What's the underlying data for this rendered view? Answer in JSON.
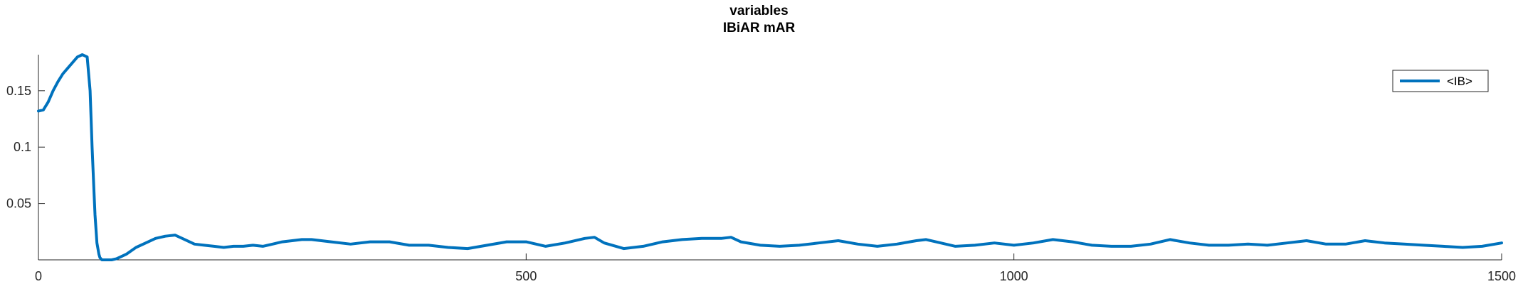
{
  "chart_data": {
    "type": "line",
    "title": "variables",
    "subtitle": "IBiAR mAR",
    "xlabel": "",
    "ylabel": "",
    "xlim": [
      0,
      1500
    ],
    "ylim": [
      0,
      0.182
    ],
    "xticks": [
      0,
      500,
      1000,
      1500
    ],
    "xtick_labels": [
      "0",
      "500",
      "1000",
      "1500"
    ],
    "yticks": [
      0.05,
      0.1,
      0.15
    ],
    "ytick_labels": [
      "0.05",
      "0.1",
      "0.15"
    ],
    "grid": false,
    "legend_position": "top-right",
    "series": [
      {
        "name": "<IB>",
        "color": "#0072BD",
        "x": [
          0,
          5,
          10,
          15,
          20,
          25,
          30,
          35,
          40,
          45,
          50,
          53,
          55,
          57,
          58,
          60,
          62,
          63,
          65,
          70,
          75,
          80,
          90,
          100,
          110,
          120,
          130,
          140,
          150,
          160,
          170,
          180,
          190,
          200,
          210,
          220,
          230,
          240,
          250,
          260,
          270,
          280,
          290,
          300,
          320,
          340,
          360,
          380,
          400,
          420,
          440,
          460,
          480,
          500,
          520,
          540,
          560,
          570,
          580,
          600,
          620,
          640,
          660,
          680,
          700,
          710,
          720,
          740,
          760,
          780,
          800,
          820,
          840,
          860,
          880,
          900,
          910,
          920,
          940,
          960,
          980,
          1000,
          1020,
          1040,
          1060,
          1080,
          1100,
          1120,
          1140,
          1160,
          1180,
          1200,
          1220,
          1240,
          1260,
          1280,
          1300,
          1320,
          1340,
          1360,
          1380,
          1400,
          1420,
          1440,
          1460,
          1480,
          1500
        ],
        "y": [
          0.132,
          0.133,
          0.14,
          0.15,
          0.158,
          0.165,
          0.17,
          0.175,
          0.18,
          0.182,
          0.18,
          0.15,
          0.1,
          0.06,
          0.04,
          0.015,
          0.005,
          0.002,
          0.0,
          0.0,
          0.0,
          0.001,
          0.005,
          0.011,
          0.015,
          0.019,
          0.021,
          0.022,
          0.018,
          0.014,
          0.013,
          0.012,
          0.011,
          0.012,
          0.012,
          0.013,
          0.012,
          0.014,
          0.016,
          0.017,
          0.018,
          0.018,
          0.017,
          0.016,
          0.014,
          0.016,
          0.016,
          0.013,
          0.013,
          0.011,
          0.01,
          0.013,
          0.016,
          0.016,
          0.012,
          0.015,
          0.019,
          0.02,
          0.015,
          0.01,
          0.012,
          0.016,
          0.018,
          0.019,
          0.019,
          0.02,
          0.016,
          0.013,
          0.012,
          0.013,
          0.015,
          0.017,
          0.014,
          0.012,
          0.014,
          0.017,
          0.018,
          0.016,
          0.012,
          0.013,
          0.015,
          0.013,
          0.015,
          0.018,
          0.016,
          0.013,
          0.012,
          0.012,
          0.014,
          0.018,
          0.015,
          0.013,
          0.013,
          0.014,
          0.013,
          0.015,
          0.017,
          0.014,
          0.014,
          0.017,
          0.015,
          0.014,
          0.013,
          0.012,
          0.011,
          0.012,
          0.015
        ]
      }
    ]
  }
}
